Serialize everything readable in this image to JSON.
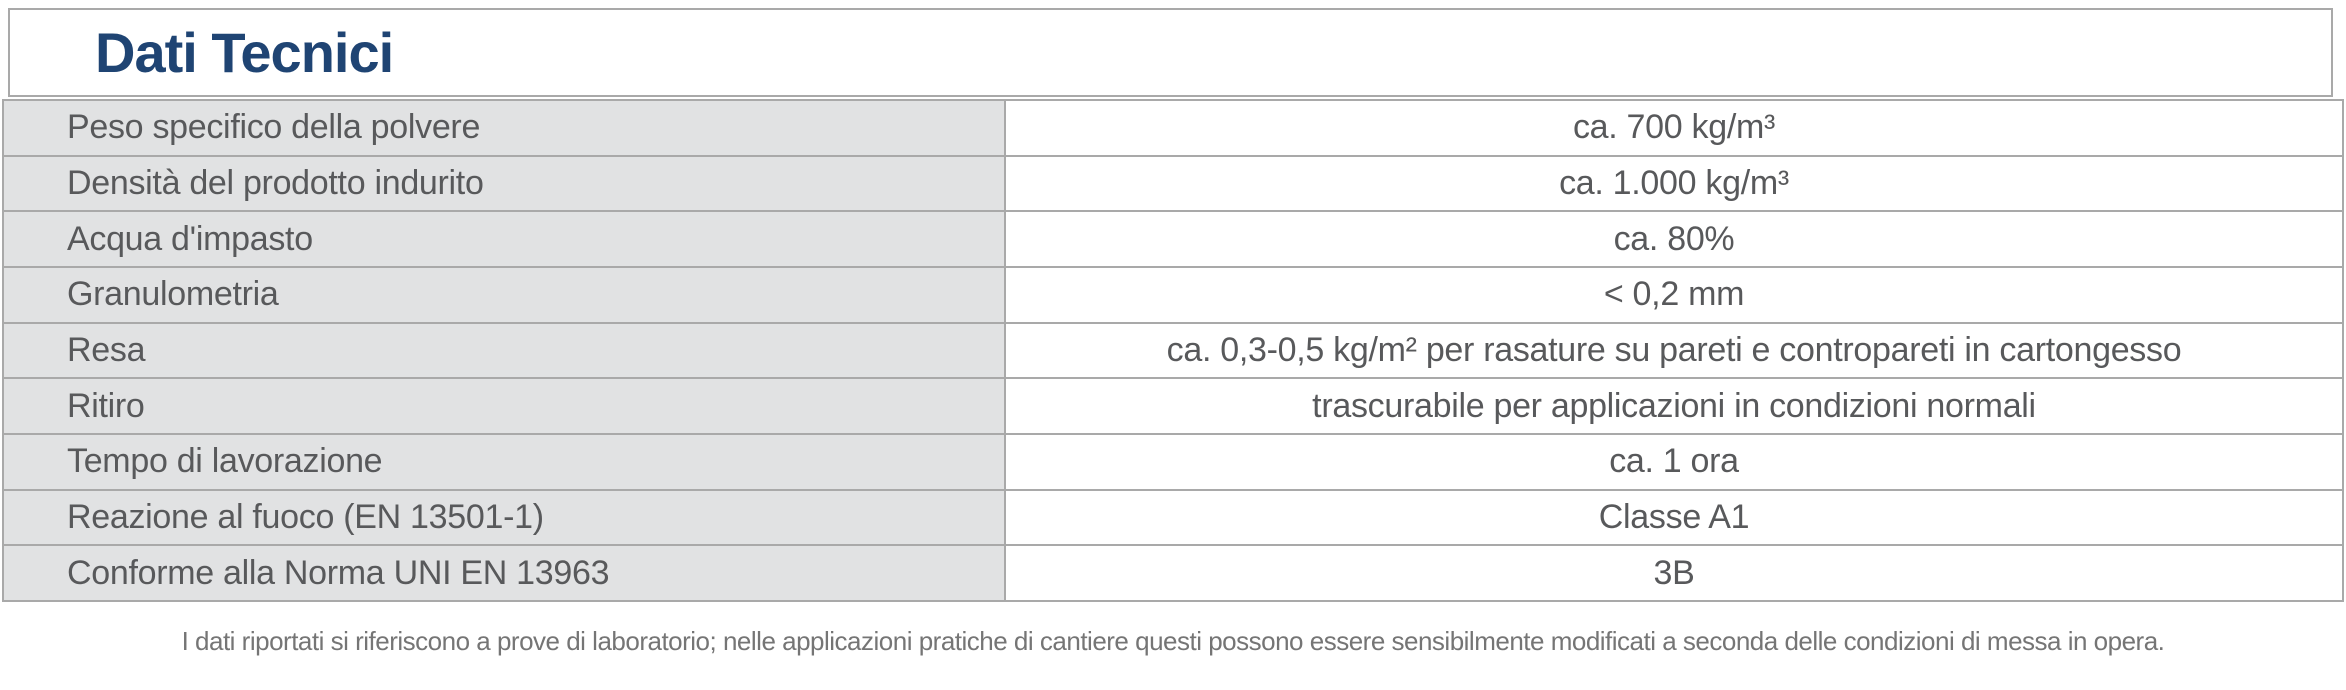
{
  "header": {
    "title": "Dati Tecnici"
  },
  "colors": {
    "title_navy": "#1F4473",
    "label_background": "#E1E2E3",
    "border_gray": "#A9A9A9",
    "table_text_gray": "#58595B",
    "footnote_gray": "#757575"
  },
  "table": {
    "rows": [
      {
        "label": "Peso specifico della polvere",
        "value": "ca. 700 kg/m³"
      },
      {
        "label": "Densità del prodotto indurito",
        "value": "ca. 1.000 kg/m³"
      },
      {
        "label": "Acqua d'impasto",
        "value": "ca. 80%"
      },
      {
        "label": "Granulometria",
        "value": "< 0,2 mm"
      },
      {
        "label": "Resa",
        "value": "ca. 0,3-0,5 kg/m² per rasature su pareti e contropareti in cartongesso"
      },
      {
        "label": "Ritiro",
        "value": "trascurabile per applicazioni in condizioni normali"
      },
      {
        "label": "Tempo di lavorazione",
        "value": "ca. 1 ora"
      },
      {
        "label": "Reazione al fuoco (EN 13501-1)",
        "value": "Classe A1"
      },
      {
        "label": "Conforme alla Norma UNI EN 13963",
        "value": "3B"
      }
    ]
  },
  "footnote": {
    "text": "I dati riportati si riferiscono a prove di laboratorio; nelle applicazioni pratiche di cantiere questi possono essere sensibilmente modificati a seconda delle condizioni di messa in opera."
  }
}
